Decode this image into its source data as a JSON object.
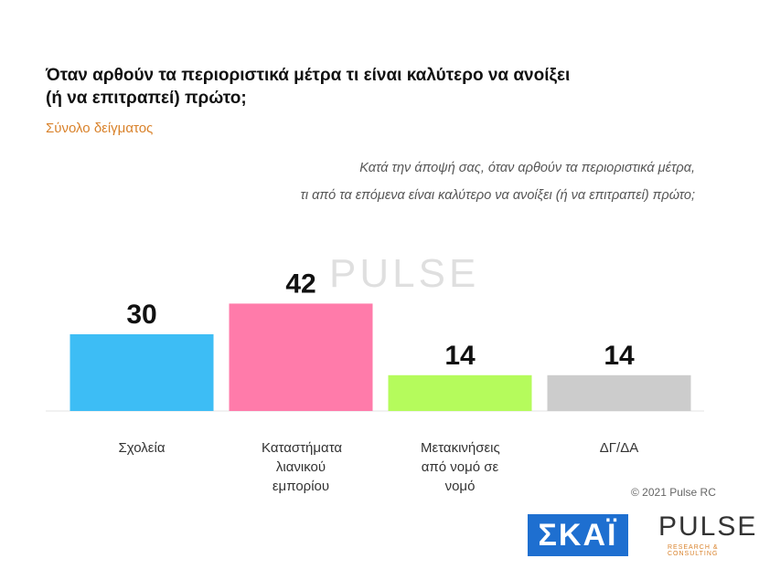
{
  "chart_data": {
    "type": "bar",
    "title": "Όταν αρθούν τα περιοριστικά μέτρα τι είναι καλύτερο να ανοίξει (ή να επιτραπεί) πρώτο;",
    "subtitle": "Σύνολο δείγματος",
    "question": [
      "Κατά την άποψή σας, όταν αρθούν τα περιοριστικά μέτρα,",
      "τι από τα επόμενα είναι καλύτερο να ανοίξει (ή να επιτραπεί) πρώτο;"
    ],
    "categories": [
      "Σχολεία",
      "Καταστήματα λιανικού εμπορίου",
      "Μετακινήσεις από νομό σε νομό",
      "ΔΓ/ΔΑ"
    ],
    "values": [
      30,
      42,
      14,
      14
    ],
    "colors": [
      "#3dbdf5",
      "#ff7baa",
      "#b5fb5c",
      "#cccccc"
    ],
    "copyright": "© 2021 Pulse RC",
    "logos": {
      "skai": "ΣΚΑΪ",
      "pulse": "PULSE",
      "pulse_tagline": "RESEARCH & CONSULTING"
    }
  }
}
